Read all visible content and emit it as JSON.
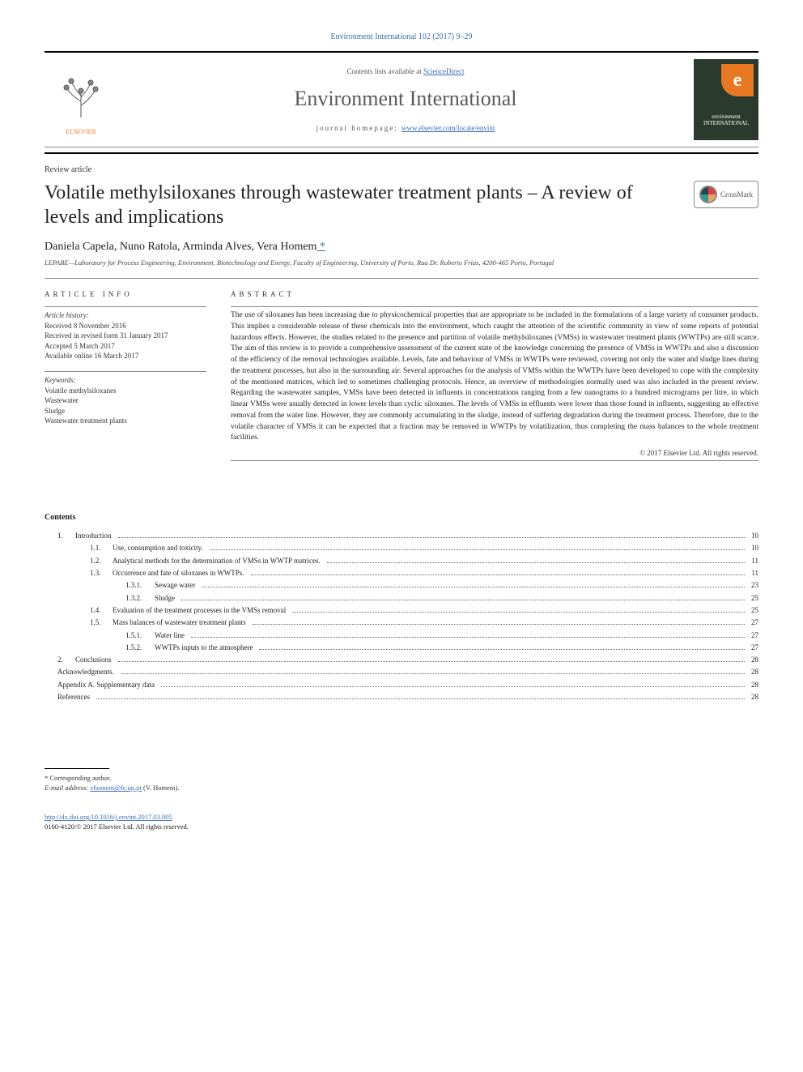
{
  "journal_ref": "Environment International 102 (2017) 9–29",
  "header": {
    "contents_line_pre": "Contents lists available at ",
    "contents_link": "ScienceDirect",
    "journal_name": "Environment International",
    "homepage_pre": "journal homepage: ",
    "homepage_url": "www.elsevier.com/locate/envint",
    "publisher": "ELSEVIER",
    "cover_text": "environment INTERNATIONAL"
  },
  "article_type": "Review article",
  "title": "Volatile methylsiloxanes through wastewater treatment plants – A review of levels and implications",
  "crossmark_label": "CrossMark",
  "authors_line": "Daniela Capela, Nuno Ratola, Arminda Alves, Vera Homem",
  "corr_mark": " *",
  "affiliation": "LEPABE—Laboratory for Process Engineering, Environment, Biotechnology and Energy, Faculty of Engineering, University of Porto, Rua Dr. Roberto Frias, 4200-465 Porto, Portugal",
  "info": {
    "heading": "article info",
    "history_label": "Article history:",
    "history": [
      "Received 8 November 2016",
      "Received in revised form 31 January 2017",
      "Accepted 5 March 2017",
      "Available online 16 March 2017"
    ],
    "keywords_label": "Keywords:",
    "keywords": [
      "Volatile methylsiloxanes",
      "Wastewater",
      "Sludge",
      "Wastewater treatment plants"
    ]
  },
  "abstract": {
    "heading": "abstract",
    "text": "The use of siloxanes has been increasing due to physicochemical properties that are appropriate to be included in the formulations of a large variety of consumer products. This implies a considerable release of these chemicals into the environment, which caught the attention of the scientific community in view of some reports of potential hazardous effects. However, the studies related to the presence and partition of volatile methylsiloxanes (VMSs) in wastewater treatment plants (WWTPs) are still scarce. The aim of this review is to provide a comprehensive assessment of the current state of the knowledge concerning the presence of VMSs in WWTPs and also a discussion of the efficiency of the removal technologies available. Levels, fate and behaviour of VMSs in WWTPs were reviewed, covering not only the water and sludge lines during the treatment processes, but also in the surrounding air. Several approaches for the analysis of VMSs within the WWTPs have been developed to cope with the complexity of the mentioned matrices, which led to sometimes challenging protocols. Hence, an overview of methodologies normally used was also included in the present review. Regarding the wastewater samples, VMSs have been detected in influents in concentrations ranging from a few nanograms to a hundred micrograms per litre, in which linear VMSs were usually detected in lower levels than cyclic siloxanes. The levels of VMSs in effluents were lower than those found in influents, suggesting an effective removal from the water line. However, they are commonly accumulating in the sludge, instead of suffering degradation during the treatment process. Therefore, due to the volatile character of VMSs it can be expected that a fraction may be removed in WWTPs by volatilization, thus completing the mass balances to the whole treatment facilities.",
    "copyright": "© 2017 Elsevier Ltd. All rights reserved."
  },
  "contents_heading": "Contents",
  "toc": [
    {
      "lvl": 1,
      "num": "1.",
      "label": "Introduction",
      "page": "10"
    },
    {
      "lvl": 2,
      "num": "1.1.",
      "label": "Use, consumption and toxicity.",
      "page": "10"
    },
    {
      "lvl": 2,
      "num": "1.2.",
      "label": "Analytical methods for the determination of VMSs in WWTP matrices.",
      "page": "11"
    },
    {
      "lvl": 2,
      "num": "1.3.",
      "label": "Occurrence and fate of siloxanes in WWTPs.",
      "page": "11"
    },
    {
      "lvl": 3,
      "num": "1.3.1.",
      "label": "Sewage water",
      "page": "23"
    },
    {
      "lvl": 3,
      "num": "1.3.2.",
      "label": "Sludge",
      "page": "25"
    },
    {
      "lvl": 2,
      "num": "1.4.",
      "label": "Evaluation of the treatment processes in the VMSs removal",
      "page": "25"
    },
    {
      "lvl": 2,
      "num": "1.5.",
      "label": "Mass balances of wastewater treatment plants",
      "page": "27"
    },
    {
      "lvl": 3,
      "num": "1.5.1.",
      "label": "Water line",
      "page": "27"
    },
    {
      "lvl": 3,
      "num": "1.5.2.",
      "label": "WWTPs inputs to the atmosphere",
      "page": "27"
    },
    {
      "lvl": 1,
      "num": "2.",
      "label": "Conclusions",
      "page": "28"
    },
    {
      "lvl": 0,
      "num": "",
      "label": "Acknowledgments.",
      "page": "28"
    },
    {
      "lvl": 0,
      "num": "",
      "label": "Appendix A.    Supplementary data",
      "page": "28"
    },
    {
      "lvl": 0,
      "num": "",
      "label": "References",
      "page": "28"
    }
  ],
  "footnote": {
    "corr_label": "* Corresponding author.",
    "email_label": "E-mail address: ",
    "email": "vhomem@fe.up.pt",
    "email_suffix": " (V. Homem)."
  },
  "doi": {
    "url": "http://dx.doi.org/10.1016/j.envint.2017.03.005",
    "issn_line": "0160-4120/© 2017 Elsevier Ltd. All rights reserved."
  },
  "colors": {
    "link": "#3a6cb5",
    "accent": "#e87722",
    "text": "#1a1a1a",
    "rule": "#000000"
  }
}
